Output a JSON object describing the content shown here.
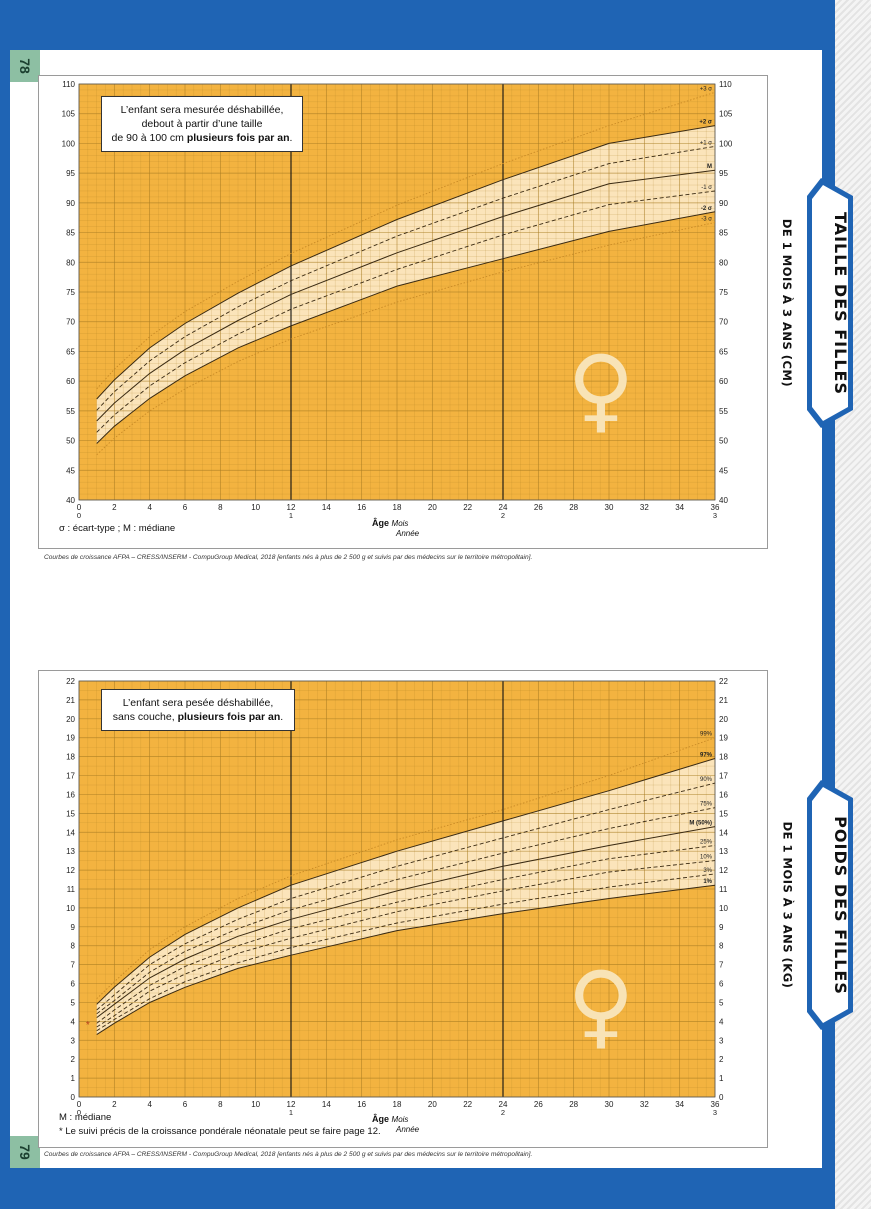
{
  "page": {
    "page_number_top": "78",
    "page_number_bottom": "79",
    "colors": {
      "frame": "#1f64b4",
      "chart_bg": "#f3b340",
      "band": "#fbe7c4",
      "grid": "#a87c22",
      "tab": "#1f64b4"
    }
  },
  "top": {
    "tab_title": "TAILLE DES FILLES",
    "tab_subtitle": "DE 1 MOIS À 3 ANS (CM)",
    "note_l1": "L’enfant sera mesurée déshabillée,",
    "note_l2": "debout à partir d’une taille",
    "note_l3a": "de 90 à 100 cm ",
    "note_l3b": "plusieurs fois par an",
    "note_l3c": ".",
    "legend": "σ : écart-type ; M : médiane",
    "age_label": "Âge",
    "age_mois": "Mois",
    "age_annee": "Année",
    "credit": "Courbes de croissance AFPA – CRESS/INSERM - CompuGroup Medical, 2018 [enfants nés à plus de 2 500 g et suivis par des médecins sur le territoire métropolitain].",
    "symbol": "♀"
  },
  "bottom": {
    "tab_title": "POIDS DES FILLES",
    "tab_subtitle": "DE 1 MOIS À 3 ANS (KG)",
    "note_l1": "L’enfant sera pesée déshabillée,",
    "note_l2a": "sans couche, ",
    "note_l2b": "plusieurs fois par an",
    "note_l2c": ".",
    "legend": "M : médiane",
    "footnote": "* Le suivi précis de la croissance pondérale néonatale peut se faire page 12.",
    "age_label": "Âge",
    "age_mois": "Mois",
    "age_annee": "Année",
    "credit": "Courbes de croissance AFPA – CRESS/INSERM - CompuGroup Medical, 2018 [enfants nés à plus de 2 500 g et suivis par des médecins sur le territoire métropolitain].",
    "symbol": "♀",
    "asterisk": "*"
  },
  "chart_data": [
    {
      "type": "line",
      "title": "TAILLE DES FILLES DE 1 MOIS À 3 ANS (CM)",
      "xlabel": "Âge Mois Année",
      "xlim": [
        0,
        36
      ],
      "ylim": [
        40,
        110
      ],
      "x_ticks": [
        0,
        2,
        4,
        6,
        8,
        10,
        12,
        14,
        16,
        18,
        20,
        22,
        24,
        26,
        28,
        30,
        32,
        34,
        36
      ],
      "x_year_ticks": [
        {
          "x": 0,
          "label": "0"
        },
        {
          "x": 12,
          "label": "1"
        },
        {
          "x": 24,
          "label": "2"
        },
        {
          "x": 36,
          "label": "3"
        }
      ],
      "y_ticks": [
        40,
        45,
        50,
        55,
        60,
        65,
        70,
        75,
        80,
        85,
        90,
        95,
        100,
        105,
        110
      ],
      "x": [
        1,
        2,
        4,
        6,
        9,
        12,
        18,
        24,
        30,
        36
      ],
      "series": [
        {
          "name": "+3 σ",
          "style": "dotted",
          "values": [
            58.7,
            62.0,
            67.5,
            71.7,
            76.8,
            81.5,
            89.6,
            96.6,
            103.0,
            108.6
          ]
        },
        {
          "name": "+2 σ",
          "style": "solid",
          "values": [
            57.0,
            60.2,
            65.6,
            69.7,
            74.8,
            79.4,
            87.2,
            93.9,
            100.0,
            103.0
          ]
        },
        {
          "name": "+1 σ",
          "style": "dashed",
          "values": [
            55.1,
            58.2,
            63.4,
            67.5,
            72.5,
            76.9,
            84.4,
            90.8,
            96.6,
            99.5
          ]
        },
        {
          "name": "M",
          "style": "solid",
          "values": [
            53.3,
            56.3,
            61.3,
            65.3,
            70.2,
            74.6,
            81.6,
            87.7,
            93.2,
            95.5
          ]
        },
        {
          "name": "-1 σ",
          "style": "dashed",
          "values": [
            51.4,
            54.3,
            59.2,
            63.1,
            67.9,
            72.1,
            78.8,
            84.6,
            89.7,
            92.0
          ]
        },
        {
          "name": "-2 σ",
          "style": "solid",
          "values": [
            49.5,
            52.4,
            57.1,
            60.9,
            65.6,
            69.3,
            76.0,
            80.6,
            85.2,
            88.5
          ]
        },
        {
          "name": "-3 σ",
          "style": "dotted",
          "values": [
            47.6,
            50.4,
            55.0,
            58.7,
            63.3,
            67.1,
            73.3,
            78.4,
            82.9,
            86.7
          ]
        }
      ]
    },
    {
      "type": "line",
      "title": "POIDS DES FILLES DE 1 MOIS À 3 ANS (KG)",
      "xlabel": "Âge Mois Année",
      "xlim": [
        0,
        36
      ],
      "ylim": [
        0,
        22
      ],
      "x_ticks": [
        0,
        2,
        4,
        6,
        8,
        10,
        12,
        14,
        16,
        18,
        20,
        22,
        24,
        26,
        28,
        30,
        32,
        34,
        36
      ],
      "x_year_ticks": [
        {
          "x": 0,
          "label": "0"
        },
        {
          "x": 12,
          "label": "1"
        },
        {
          "x": 24,
          "label": "2"
        },
        {
          "x": 36,
          "label": "3"
        }
      ],
      "y_ticks": [
        0,
        1,
        2,
        3,
        4,
        5,
        6,
        7,
        8,
        9,
        10,
        11,
        12,
        13,
        14,
        15,
        16,
        17,
        18,
        19,
        20,
        21,
        22
      ],
      "x": [
        1,
        2,
        4,
        6,
        9,
        12,
        18,
        24,
        30,
        36
      ],
      "series": [
        {
          "name": "99%",
          "style": "dotted",
          "values": [
            5.2,
            6.1,
            7.8,
            9.0,
            10.5,
            11.7,
            13.6,
            15.2,
            17.0,
            19.0
          ]
        },
        {
          "name": "97%",
          "style": "solid",
          "values": [
            4.9,
            5.8,
            7.4,
            8.6,
            10.0,
            11.2,
            13.0,
            14.6,
            16.2,
            17.9
          ]
        },
        {
          "name": "90%",
          "style": "dashed",
          "values": [
            4.6,
            5.4,
            7.0,
            8.1,
            9.4,
            10.5,
            12.2,
            13.7,
            15.2,
            16.6
          ]
        },
        {
          "name": "75%",
          "style": "dashed",
          "values": [
            4.4,
            5.1,
            6.6,
            7.7,
            8.9,
            9.9,
            11.5,
            12.9,
            14.2,
            15.3
          ]
        },
        {
          "name": "M (50%)",
          "style": "solid",
          "values": [
            4.2,
            4.9,
            6.3,
            7.3,
            8.5,
            9.4,
            10.9,
            12.2,
            13.3,
            14.3
          ]
        },
        {
          "name": "25%",
          "style": "dashed",
          "values": [
            3.9,
            4.6,
            5.9,
            6.9,
            8.0,
            8.9,
            10.3,
            11.5,
            12.6,
            13.3
          ]
        },
        {
          "name": "10%",
          "style": "dashed",
          "values": [
            3.7,
            4.3,
            5.6,
            6.5,
            7.6,
            8.4,
            9.8,
            10.9,
            11.9,
            12.5
          ]
        },
        {
          "name": "3%",
          "style": "dashed",
          "values": [
            3.5,
            4.1,
            5.2,
            6.1,
            7.1,
            7.9,
            9.2,
            10.2,
            11.1,
            11.8
          ]
        },
        {
          "name": "1%",
          "style": "solid",
          "values": [
            3.3,
            3.9,
            5.0,
            5.8,
            6.8,
            7.5,
            8.8,
            9.7,
            10.5,
            11.2
          ]
        }
      ],
      "annotations": [
        {
          "x": 0.5,
          "y": 3.8,
          "label": "*"
        }
      ]
    }
  ]
}
